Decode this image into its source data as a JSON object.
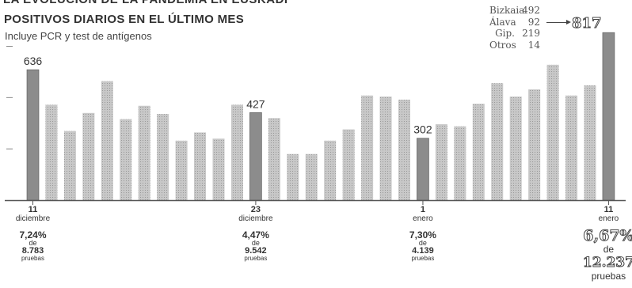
{
  "header": {
    "clipped_title": "LA EVOLUCIÓN DE LA PANDEMIA EN EUSKADI",
    "title": "POSITIVOS DIARIOS EN EL ÚLTIMO MES",
    "subtitle": "Incluye PCR y test de antígenos"
  },
  "breakdown": [
    {
      "label": "Bizkaia",
      "value": "492"
    },
    {
      "label": "Álava",
      "value": "92"
    },
    {
      "label": "Gip.",
      "value": "219"
    },
    {
      "label": "Otros",
      "value": "14"
    }
  ],
  "breakdown_total": "817",
  "colors": {
    "bar": "#c8c8c8",
    "highlight_bar": "#8c8c8c",
    "axis": "#555555",
    "text": "#333333"
  },
  "chart_data": {
    "type": "bar",
    "title": "POSITIVOS DIARIOS EN EL ÚLTIMO MES",
    "subtitle": "Incluye PCR y test de antígenos",
    "values": [
      636,
      465,
      337,
      425,
      580,
      395,
      460,
      420,
      290,
      330,
      300,
      465,
      427,
      400,
      225,
      225,
      290,
      345,
      510,
      505,
      490,
      302,
      370,
      360,
      470,
      570,
      505,
      540,
      660,
      510,
      560,
      817
    ],
    "highlight_indices": [
      0,
      12,
      21,
      31
    ],
    "value_labels": [
      {
        "index": 0,
        "text": "636"
      },
      {
        "index": 12,
        "text": "427"
      },
      {
        "index": 21,
        "text": "302"
      },
      {
        "index": 31,
        "text": "817"
      }
    ],
    "ylim": [
      0,
      860
    ],
    "grid": false,
    "date_labels": [
      {
        "index": 0,
        "day": "11",
        "month": "diciembre"
      },
      {
        "index": 12,
        "day": "23",
        "month": "diciembre"
      },
      {
        "index": 21,
        "day": "1",
        "month": "enero"
      },
      {
        "index": 31,
        "day": "11",
        "month": "enero"
      }
    ],
    "positivity": [
      {
        "index": 0,
        "percent": "7,24%",
        "of": "de",
        "tests": "8.783",
        "word": "pruebas"
      },
      {
        "index": 12,
        "percent": "4,47%",
        "of": "de",
        "tests": "9.542",
        "word": "pruebas"
      },
      {
        "index": 21,
        "percent": "7,30%",
        "of": "de",
        "tests": "4.139",
        "word": "pruebas"
      },
      {
        "index": 31,
        "percent": "6,67%",
        "of": "de",
        "tests": "12.237",
        "word": "pruebas"
      }
    ]
  }
}
